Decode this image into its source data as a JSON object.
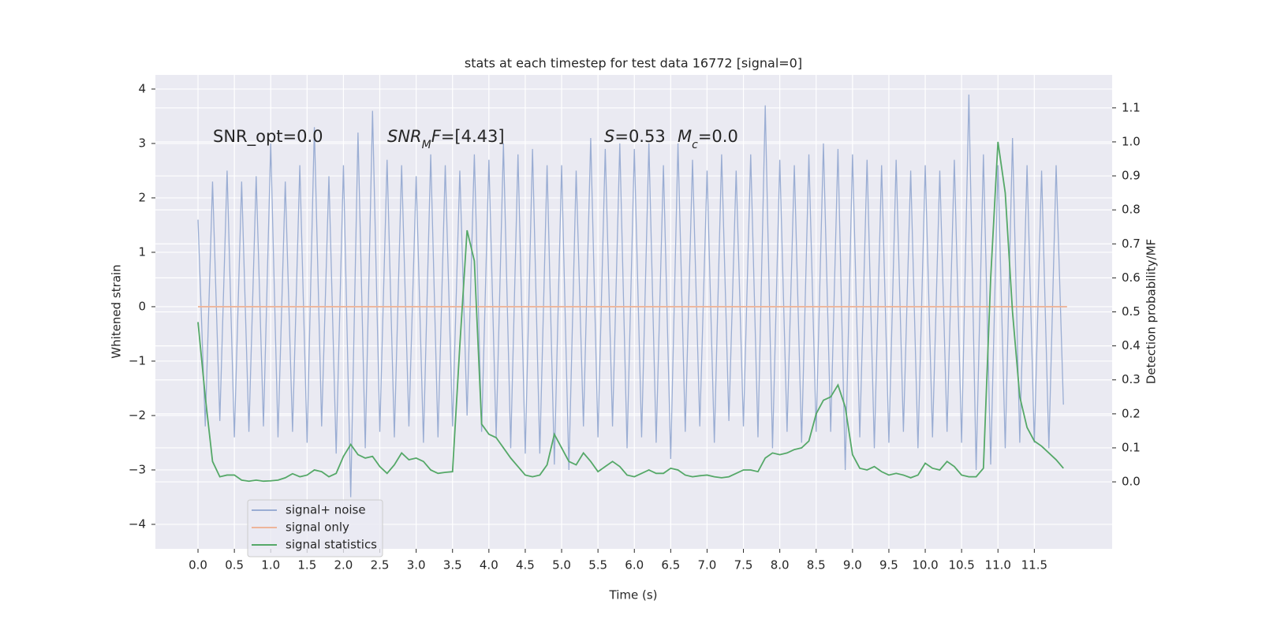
{
  "chart_data": {
    "type": "line",
    "title": "stats at each timestep for test data 16772 [signal=0]",
    "xlabel": "Time (s)",
    "ylabel": "Whitened strain",
    "y2label": "Detection probability/MF",
    "annotations": [
      [
        {
          "text": "SNR_opt=0.0"
        }
      ],
      [
        {
          "text": "SNR",
          "italic": true
        },
        {
          "text": "M",
          "italic": true,
          "sub": true
        },
        {
          "text": "F",
          "italic": true
        },
        {
          "text": "=[4.43]"
        }
      ],
      [
        {
          "text": "S",
          "italic": true
        },
        {
          "text": "=0.53"
        }
      ],
      [
        {
          "text": "M",
          "italic": true
        },
        {
          "text": "c",
          "italic": true,
          "sub": true
        },
        {
          "text": "=0.0"
        }
      ]
    ],
    "xlim": [
      -0.586,
      12.57
    ],
    "ylim": [
      -4.45,
      4.26
    ],
    "y2lim": [
      -0.197,
      1.197
    ],
    "xticks": [
      {
        "value": 0,
        "label": "0.0"
      },
      0.5,
      {
        "value": 1,
        "label": "1.0"
      },
      1.5,
      {
        "value": 2,
        "label": "2.0"
      },
      2.5,
      {
        "value": 3,
        "label": "3.0"
      },
      3.5,
      {
        "value": 4,
        "label": "4.0"
      },
      4.5,
      {
        "value": 5,
        "label": "5.0"
      },
      5.5,
      {
        "value": 6,
        "label": "6.0"
      },
      6.5,
      {
        "value": 7,
        "label": "7.0"
      },
      7.5,
      {
        "value": 8,
        "label": "8.0"
      },
      8.5,
      {
        "value": 9,
        "label": "9.0"
      },
      9.5,
      {
        "value": 10,
        "label": "10.0"
      },
      10.5,
      {
        "value": 11,
        "label": "11.0"
      },
      11.5
    ],
    "yticks": [
      {
        "value": -4,
        "label": "−4"
      },
      {
        "value": -3,
        "label": "−3"
      },
      {
        "value": -2,
        "label": "−2"
      },
      {
        "value": -1,
        "label": "−1"
      },
      0,
      1,
      2,
      3,
      4
    ],
    "y2ticks": [
      {
        "value": 0,
        "label": "0.0"
      },
      0.1,
      0.2,
      0.3,
      0.4,
      0.5,
      0.6,
      0.7,
      0.8,
      0.9,
      {
        "value": 1,
        "label": "1.0"
      },
      1.1
    ],
    "grid": true,
    "legend": "lower left",
    "series": [
      {
        "name": "signal+ noise",
        "color": "#9aadd3",
        "x": [
          0,
          0.1,
          0.2,
          0.3,
          0.4,
          0.5,
          0.6,
          0.7,
          0.8,
          0.9,
          1,
          1.1,
          1.2,
          1.3,
          1.4,
          1.5,
          1.6,
          1.7,
          1.8,
          1.9,
          2,
          2.1,
          2.2,
          2.3,
          2.4,
          2.5,
          2.6,
          2.7,
          2.8,
          2.9,
          3,
          3.1,
          3.2,
          3.3,
          3.4,
          3.5,
          3.6,
          3.7,
          3.8,
          3.9,
          4,
          4.1,
          4.2,
          4.3,
          4.4,
          4.5,
          4.6,
          4.7,
          4.8,
          4.9,
          5,
          5.1,
          5.2,
          5.3,
          5.4,
          5.5,
          5.6,
          5.7,
          5.8,
          5.9,
          6,
          6.1,
          6.2,
          6.3,
          6.4,
          6.5,
          6.6,
          6.7,
          6.8,
          6.9,
          7,
          7.1,
          7.2,
          7.3,
          7.4,
          7.5,
          7.6,
          7.7,
          7.8,
          7.9,
          8,
          8.1,
          8.2,
          8.3,
          8.4,
          8.5,
          8.6,
          8.7,
          8.8,
          8.9,
          9,
          9.1,
          9.2,
          9.3,
          9.4,
          9.5,
          9.6,
          9.7,
          9.8,
          9.9,
          10,
          10.1,
          10.2,
          10.3,
          10.4,
          10.5,
          10.6,
          10.7,
          10.8,
          10.9,
          11,
          11.1,
          11.2,
          11.3,
          11.4,
          11.5,
          11.6,
          11.7,
          11.8,
          11.9
        ],
        "values": [
          1.6,
          -2.2,
          2.3,
          -2.1,
          2.5,
          -2.4,
          2.3,
          -2.3,
          2.4,
          -2.2,
          3.0,
          -2.4,
          2.3,
          -2.3,
          2.6,
          -2.5,
          3.3,
          -2.2,
          2.4,
          -2.7,
          2.6,
          -3.5,
          3.2,
          -2.6,
          3.6,
          -2.3,
          2.7,
          -2.4,
          2.6,
          -2.2,
          2.4,
          -2.5,
          2.8,
          -2.4,
          2.6,
          -2.2,
          2.5,
          -2.0,
          2.8,
          -2.3,
          2.7,
          -2.4,
          3.0,
          -2.6,
          2.8,
          -2.7,
          2.9,
          -2.7,
          2.6,
          -2.9,
          2.6,
          -3.0,
          2.5,
          -2.2,
          3.1,
          -2.4,
          2.9,
          -2.2,
          3.0,
          -2.6,
          2.9,
          -2.4,
          3.0,
          -2.5,
          2.6,
          -2.8,
          3.0,
          -2.3,
          2.7,
          -2.2,
          2.5,
          -2.5,
          2.8,
          -2.1,
          2.5,
          -2.2,
          2.8,
          -2.4,
          3.7,
          -2.6,
          2.7,
          -2.3,
          2.6,
          -2.5,
          2.8,
          -2.3,
          3.0,
          -2.3,
          2.9,
          -3.0,
          2.8,
          -2.4,
          2.7,
          -2.6,
          2.6,
          -2.5,
          2.7,
          -2.3,
          2.5,
          -2.6,
          2.6,
          -2.4,
          2.5,
          -2.3,
          2.7,
          -2.5,
          3.9,
          -3.0,
          2.8,
          -2.9,
          2.6,
          -2.6,
          3.1,
          -2.5,
          2.6,
          -2.5,
          2.5,
          -2.6,
          2.6,
          -1.8
        ]
      },
      {
        "name": "signal only",
        "color": "#eeb59a",
        "x": [
          0,
          11.95
        ],
        "values": [
          0,
          0
        ]
      },
      {
        "name": "signal statistics",
        "color": "#55a868",
        "axis": "y2",
        "x": [
          0,
          0.1,
          0.2,
          0.3,
          0.4,
          0.5,
          0.6,
          0.7,
          0.8,
          0.9,
          1,
          1.1,
          1.2,
          1.3,
          1.4,
          1.5,
          1.6,
          1.7,
          1.8,
          1.9,
          2,
          2.1,
          2.2,
          2.3,
          2.4,
          2.5,
          2.6,
          2.7,
          2.8,
          2.9,
          3,
          3.1,
          3.2,
          3.3,
          3.4,
          3.5,
          3.6,
          3.7,
          3.8,
          3.9,
          4,
          4.1,
          4.2,
          4.3,
          4.4,
          4.5,
          4.6,
          4.7,
          4.8,
          4.9,
          5,
          5.1,
          5.2,
          5.3,
          5.4,
          5.5,
          5.6,
          5.7,
          5.8,
          5.9,
          6,
          6.1,
          6.2,
          6.3,
          6.4,
          6.5,
          6.6,
          6.7,
          6.8,
          6.9,
          7,
          7.1,
          7.2,
          7.3,
          7.4,
          7.5,
          7.6,
          7.7,
          7.8,
          7.9,
          8,
          8.1,
          8.2,
          8.3,
          8.4,
          8.5,
          8.6,
          8.7,
          8.8,
          8.9,
          9,
          9.1,
          9.2,
          9.3,
          9.4,
          9.5,
          9.6,
          9.7,
          9.8,
          9.9,
          10,
          10.1,
          10.2,
          10.3,
          10.4,
          10.5,
          10.6,
          10.7,
          10.8,
          10.9,
          11,
          11.1,
          11.2,
          11.3,
          11.4,
          11.5,
          11.6,
          11.7,
          11.8,
          11.9
        ],
        "values": [
          0.47,
          0.25,
          0.06,
          0.015,
          0.02,
          0.02,
          0.005,
          0.002,
          0.005,
          0.002,
          0.003,
          0.005,
          0.012,
          0.024,
          0.015,
          0.02,
          0.035,
          0.03,
          0.015,
          0.025,
          0.075,
          0.11,
          0.08,
          0.07,
          0.075,
          0.045,
          0.025,
          0.05,
          0.085,
          0.065,
          0.07,
          0.06,
          0.035,
          0.025,
          0.028,
          0.03,
          0.4,
          0.74,
          0.65,
          0.17,
          0.14,
          0.13,
          0.1,
          0.07,
          0.045,
          0.02,
          0.015,
          0.02,
          0.05,
          0.14,
          0.1,
          0.06,
          0.05,
          0.085,
          0.06,
          0.03,
          0.045,
          0.06,
          0.045,
          0.02,
          0.015,
          0.025,
          0.035,
          0.025,
          0.025,
          0.04,
          0.035,
          0.02,
          0.015,
          0.018,
          0.02,
          0.015,
          0.012,
          0.015,
          0.025,
          0.035,
          0.035,
          0.03,
          0.07,
          0.085,
          0.08,
          0.085,
          0.095,
          0.1,
          0.12,
          0.2,
          0.24,
          0.25,
          0.285,
          0.22,
          0.08,
          0.04,
          0.035,
          0.045,
          0.03,
          0.02,
          0.025,
          0.02,
          0.012,
          0.02,
          0.055,
          0.04,
          0.035,
          0.06,
          0.045,
          0.02,
          0.015,
          0.015,
          0.04,
          0.6,
          1.0,
          0.85,
          0.5,
          0.25,
          0.16,
          0.12,
          0.105,
          0.085,
          0.065,
          0.04
        ]
      }
    ]
  }
}
